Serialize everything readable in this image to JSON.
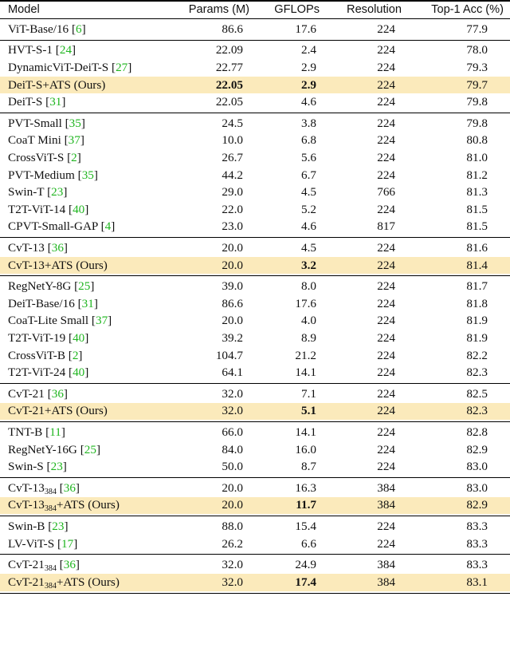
{
  "header": {
    "model": "Model",
    "params": "Params (M)",
    "gflops": "GFLOPs",
    "resolution": "Resolution",
    "top1": "Top-1 Acc (%)"
  },
  "groups": [
    {
      "rows": [
        {
          "name": "ViT-Base/16",
          "cite": "6",
          "params": "86.6",
          "gflops": "17.6",
          "res": "224",
          "acc": "77.9"
        }
      ]
    },
    {
      "rows": [
        {
          "name": "HVT-S-1",
          "cite": "24",
          "params": "22.09",
          "gflops": "2.4",
          "res": "224",
          "acc": "78.0"
        },
        {
          "name": "DynamicViT-DeiT-S",
          "cite": "27",
          "params": "22.77",
          "gflops": "2.9",
          "res": "224",
          "acc": "79.3"
        },
        {
          "name": "DeiT-S+ATS (Ours)",
          "params": "22.05",
          "gflops": "2.9",
          "res": "224",
          "acc": "79.7",
          "highlight": true,
          "bold_params": true,
          "bold_gflops": true
        },
        {
          "name": "DeiT-S",
          "cite": "31",
          "params": "22.05",
          "gflops": "4.6",
          "res": "224",
          "acc": "79.8"
        }
      ]
    },
    {
      "rows": [
        {
          "name": "PVT-Small",
          "cite": "35",
          "params": "24.5",
          "gflops": "3.8",
          "res": "224",
          "acc": "79.8"
        },
        {
          "name": "CoaT Mini",
          "cite": "37",
          "params": "10.0",
          "gflops": "6.8",
          "res": "224",
          "acc": "80.8"
        },
        {
          "name": "CrossViT-S",
          "cite": "2",
          "params": "26.7",
          "gflops": "5.6",
          "res": "224",
          "acc": "81.0"
        },
        {
          "name": "PVT-Medium",
          "cite": "35",
          "params": "44.2",
          "gflops": "6.7",
          "res": "224",
          "acc": "81.2"
        },
        {
          "name": "Swin-T",
          "cite": "23",
          "params": "29.0",
          "gflops": "4.5",
          "res": "766",
          "acc": "81.3"
        },
        {
          "name": "T2T-ViT-14",
          "cite": "40",
          "params": "22.0",
          "gflops": "5.2",
          "res": "224",
          "acc": "81.5"
        },
        {
          "name": "CPVT-Small-GAP",
          "cite": "4",
          "params": "23.0",
          "gflops": "4.6",
          "res": "817",
          "acc": "81.5"
        }
      ]
    },
    {
      "rows": [
        {
          "name": "CvT-13",
          "cite": "36",
          "params": "20.0",
          "gflops": "4.5",
          "res": "224",
          "acc": "81.6"
        },
        {
          "name": "CvT-13+ATS (Ours)",
          "params": "20.0",
          "gflops": "3.2",
          "res": "224",
          "acc": "81.4",
          "highlight": true,
          "bold_gflops": true
        }
      ]
    },
    {
      "rows": [
        {
          "name": "RegNetY-8G",
          "cite": "25",
          "params": "39.0",
          "gflops": "8.0",
          "res": "224",
          "acc": "81.7"
        },
        {
          "name": "DeiT-Base/16",
          "cite": "31",
          "params": "86.6",
          "gflops": "17.6",
          "res": "224",
          "acc": "81.8"
        },
        {
          "name": "CoaT-Lite Small",
          "cite": "37",
          "params": "20.0",
          "gflops": "4.0",
          "res": "224",
          "acc": "81.9"
        },
        {
          "name": "T2T-ViT-19",
          "cite": "40",
          "params": "39.2",
          "gflops": "8.9",
          "res": "224",
          "acc": "81.9"
        },
        {
          "name": "CrossViT-B",
          "cite": "2",
          "params": "104.7",
          "gflops": "21.2",
          "res": "224",
          "acc": "82.2"
        },
        {
          "name": "T2T-ViT-24",
          "cite": "40",
          "params": "64.1",
          "gflops": "14.1",
          "res": "224",
          "acc": "82.3"
        }
      ]
    },
    {
      "rows": [
        {
          "name": "CvT-21",
          "cite": "36",
          "params": "32.0",
          "gflops": "7.1",
          "res": "224",
          "acc": "82.5"
        },
        {
          "name": "CvT-21+ATS (Ours)",
          "params": "32.0",
          "gflops": "5.1",
          "res": "224",
          "acc": "82.3",
          "highlight": true,
          "bold_gflops": true
        }
      ]
    },
    {
      "rows": [
        {
          "name": "TNT-B",
          "cite": "11",
          "params": "66.0",
          "gflops": "14.1",
          "res": "224",
          "acc": "82.8"
        },
        {
          "name": "RegNetY-16G",
          "cite": "25",
          "params": "84.0",
          "gflops": "16.0",
          "res": "224",
          "acc": "82.9"
        },
        {
          "name": "Swin-S",
          "cite": "23",
          "params": "50.0",
          "gflops": "8.7",
          "res": "224",
          "acc": "83.0"
        }
      ]
    },
    {
      "rows": [
        {
          "name": "CvT-13",
          "sub": "384",
          "cite": "36",
          "params": "20.0",
          "gflops": "16.3",
          "res": "384",
          "acc": "83.0"
        },
        {
          "name": "CvT-13",
          "sub": "384",
          "suffix": "+ATS (Ours)",
          "params": "20.0",
          "gflops": "11.7",
          "res": "384",
          "acc": "82.9",
          "highlight": true,
          "bold_gflops": true
        }
      ]
    },
    {
      "rows": [
        {
          "name": "Swin-B",
          "cite": "23",
          "params": "88.0",
          "gflops": "15.4",
          "res": "224",
          "acc": "83.3"
        },
        {
          "name": "LV-ViT-S",
          "cite": "17",
          "params": "26.2",
          "gflops": "6.6",
          "res": "224",
          "acc": "83.3"
        }
      ]
    },
    {
      "rows": [
        {
          "name": "CvT-21",
          "sub": "384",
          "cite": "36",
          "params": "32.0",
          "gflops": "24.9",
          "res": "384",
          "acc": "83.3"
        },
        {
          "name": "CvT-21",
          "sub": "384",
          "suffix": "+ATS (Ours)",
          "params": "32.0",
          "gflops": "17.4",
          "res": "384",
          "acc": "83.1",
          "highlight": true,
          "bold_gflops": true
        }
      ]
    }
  ]
}
